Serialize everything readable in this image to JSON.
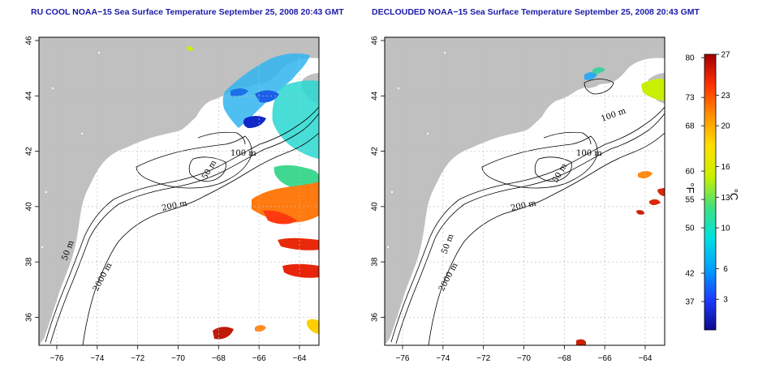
{
  "panels": [
    {
      "id": "left",
      "title": "RU COOL NOAA−15 Sea Surface Temperature September 25, 2008 20:43 GMT",
      "x_ticks": [
        "−76",
        "−74",
        "−72",
        "−70",
        "−68",
        "−66",
        "−64"
      ],
      "y_ticks": [
        "46",
        "44",
        "42",
        "40",
        "38",
        "36"
      ],
      "contour_labels": [
        "100 m",
        "50 m",
        "200 m",
        "50 m",
        "2000 m"
      ]
    },
    {
      "id": "right",
      "title": "DECLOUDED NOAA−15 Sea Surface Temperature September 25, 2008 20:43 GMT",
      "x_ticks": [
        "−76",
        "−74",
        "−72",
        "−70",
        "−68",
        "−66",
        "−64"
      ],
      "y_ticks": [
        "46",
        "44",
        "42",
        "40",
        "38",
        "36"
      ],
      "contour_labels": [
        "100 m",
        "100 m",
        "50 m",
        "200 m",
        "50 m",
        "2000 m"
      ]
    }
  ],
  "colorbar": {
    "fahrenheit_ticks": [
      "80",
      "73",
      "68",
      "60",
      "55",
      "50",
      "42",
      "37"
    ],
    "celsius_ticks": [
      "27",
      "23",
      "20",
      "16",
      "13",
      "10",
      "6",
      "3"
    ],
    "fahrenheit_unit": "°F",
    "celsius_unit": "°C",
    "range_c": [
      0,
      27
    ],
    "colors": [
      "#0b0b8c",
      "#1e3cff",
      "#00a0ff",
      "#00e0e0",
      "#40e080",
      "#c8f000",
      "#ffe000",
      "#ff9000",
      "#ff3000",
      "#a00000"
    ]
  },
  "colors": {
    "land": "#c0c0c0",
    "title": "#1a1aa8",
    "grid": "#bdbdbd"
  }
}
